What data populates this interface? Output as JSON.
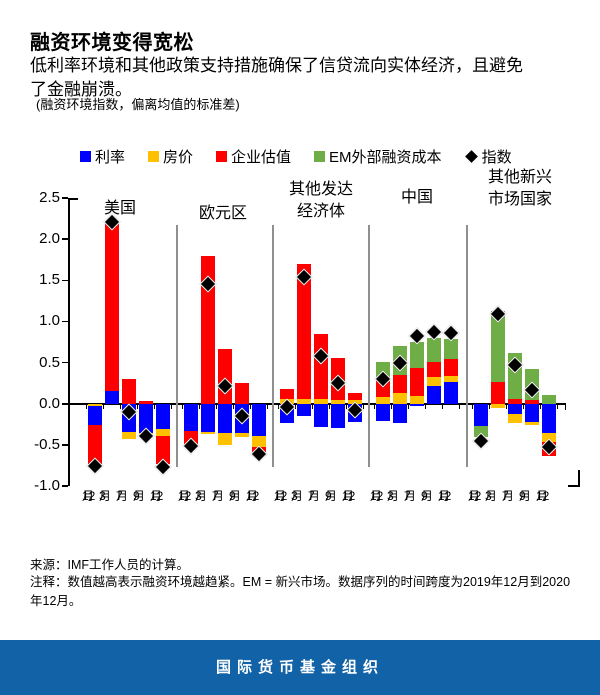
{
  "header": {
    "title": "融资环境变得宽松",
    "subtitle": "低利率环境和其他政策支持措施确保了信贷流向实体经济，且避免了金融崩溃。",
    "unit_note": "(融资环境指数，偏离均值的标准差)"
  },
  "colors": {
    "rate_blue": "#0000FE",
    "house_yellow": "#FFC000",
    "corp_red": "#FE0000",
    "em_green": "#6FAD47",
    "index_black": "#000000",
    "separator_gray": "#8F8F8F",
    "banner_blue": "#1162A6"
  },
  "legend": [
    {
      "label": "利率",
      "marker": "square",
      "color": "#0000FE"
    },
    {
      "label": "房价",
      "marker": "square",
      "color": "#FFC000"
    },
    {
      "label": "企业估值",
      "marker": "square",
      "color": "#FE0000"
    },
    {
      "label": "EM外部融资成本",
      "marker": "square",
      "color": "#6FAD47"
    },
    {
      "label": "指数",
      "marker": "diamond",
      "color": "#000000"
    }
  ],
  "chart_data": {
    "type": "bar",
    "stacked": true,
    "ylim": [
      -1.0,
      2.5
    ],
    "yticks": [
      2.5,
      2.0,
      1.5,
      1.0,
      0.5,
      0.0,
      -0.5,
      -1.0
    ],
    "grid": false,
    "x_tick_labels": [
      "12月",
      "3月",
      "7月",
      "9月",
      "12月"
    ],
    "series_colors": {
      "利率": "#0000FE",
      "房价": "#FFC000",
      "企业估值": "#FE0000",
      "EM外部融资成本": "#6FAD47"
    },
    "index_marker": "指数",
    "groups": [
      {
        "name": "美国",
        "label_lines": [
          "美国"
        ],
        "bars": [
          {
            "segments": [
              {
                "s": "房价",
                "v": -0.03
              },
              {
                "s": "利率",
                "v": -0.23
              },
              {
                "s": "企业估值",
                "v": -0.47
              }
            ],
            "index": -0.76
          },
          {
            "segments": [
              {
                "s": "利率",
                "v": 0.15
              },
              {
                "s": "企业估值",
                "v": 2.07
              }
            ],
            "index": 2.2
          },
          {
            "segments": [
              {
                "s": "企业估值",
                "v": 0.3
              },
              {
                "s": "利率",
                "v": -0.34
              },
              {
                "s": "房价",
                "v": -0.09
              }
            ],
            "index": -0.11
          },
          {
            "segments": [
              {
                "s": "企业估值",
                "v": 0.03
              },
              {
                "s": "利率",
                "v": -0.35
              },
              {
                "s": "房价",
                "v": -0.05
              }
            ],
            "index": -0.4
          },
          {
            "segments": [
              {
                "s": "利率",
                "v": -0.31
              },
              {
                "s": "房价",
                "v": -0.08
              },
              {
                "s": "企业估值",
                "v": -0.34
              }
            ],
            "index": -0.77
          }
        ]
      },
      {
        "name": "欧元区",
        "label_lines": [
          "欧元区"
        ],
        "bars": [
          {
            "segments": [
              {
                "s": "利率",
                "v": -0.33
              },
              {
                "s": "企业估值",
                "v": -0.17
              }
            ],
            "index": -0.52
          },
          {
            "segments": [
              {
                "s": "企业估值",
                "v": 1.8
              },
              {
                "s": "利率",
                "v": -0.34
              },
              {
                "s": "房价",
                "v": -0.03
              }
            ],
            "index": 1.45
          },
          {
            "segments": [
              {
                "s": "企业估值",
                "v": 0.66
              },
              {
                "s": "利率",
                "v": -0.36
              },
              {
                "s": "房价",
                "v": -0.14
              }
            ],
            "index": 0.21
          },
          {
            "segments": [
              {
                "s": "企业估值",
                "v": 0.25
              },
              {
                "s": "利率",
                "v": -0.35
              },
              {
                "s": "房价",
                "v": -0.06
              }
            ],
            "index": -0.16
          },
          {
            "segments": [
              {
                "s": "利率",
                "v": -0.39
              },
              {
                "s": "房价",
                "v": -0.13
              },
              {
                "s": "企业估值",
                "v": -0.12
              }
            ],
            "index": -0.62
          }
        ]
      },
      {
        "name": "其他发达经济体",
        "label_lines": [
          "其他发达",
          "经济体"
        ],
        "bars": [
          {
            "segments": [
              {
                "s": "房价",
                "v": 0.06
              },
              {
                "s": "企业估值",
                "v": 0.12
              },
              {
                "s": "利率",
                "v": -0.23
              }
            ],
            "index": -0.04
          },
          {
            "segments": [
              {
                "s": "房价",
                "v": 0.06
              },
              {
                "s": "企业估值",
                "v": 1.64
              },
              {
                "s": "利率",
                "v": -0.15
              }
            ],
            "index": 1.53
          },
          {
            "segments": [
              {
                "s": "房价",
                "v": 0.06
              },
              {
                "s": "企业估值",
                "v": 0.79
              },
              {
                "s": "利率",
                "v": -0.28
              }
            ],
            "index": 0.58
          },
          {
            "segments": [
              {
                "s": "房价",
                "v": 0.05
              },
              {
                "s": "企业估值",
                "v": 0.51
              },
              {
                "s": "利率",
                "v": -0.3
              }
            ],
            "index": 0.25
          },
          {
            "segments": [
              {
                "s": "房价",
                "v": 0.04
              },
              {
                "s": "企业估值",
                "v": 0.09
              },
              {
                "s": "利率",
                "v": -0.22
              }
            ],
            "index": -0.08
          }
        ]
      },
      {
        "name": "中国",
        "label_lines": [
          "中国"
        ],
        "bars": [
          {
            "segments": [
              {
                "s": "房价",
                "v": 0.08
              },
              {
                "s": "企业估值",
                "v": 0.25
              },
              {
                "s": "EM外部融资成本",
                "v": 0.18
              },
              {
                "s": "利率",
                "v": -0.21
              }
            ],
            "index": 0.3
          },
          {
            "segments": [
              {
                "s": "房价",
                "v": 0.13
              },
              {
                "s": "企业估值",
                "v": 0.22
              },
              {
                "s": "EM外部融资成本",
                "v": 0.35
              },
              {
                "s": "利率",
                "v": -0.23
              }
            ],
            "index": 0.49
          },
          {
            "segments": [
              {
                "s": "房价",
                "v": 0.09
              },
              {
                "s": "企业估值",
                "v": 0.35
              },
              {
                "s": "EM外部融资成本",
                "v": 0.31
              },
              {
                "s": "利率",
                "v": -0.03
              }
            ],
            "index": 0.82
          },
          {
            "segments": [
              {
                "s": "利率",
                "v": 0.22
              },
              {
                "s": "房价",
                "v": 0.1
              },
              {
                "s": "企业估值",
                "v": 0.19
              },
              {
                "s": "EM外部融资成本",
                "v": 0.29
              }
            ],
            "index": 0.86
          },
          {
            "segments": [
              {
                "s": "利率",
                "v": 0.26
              },
              {
                "s": "房价",
                "v": 0.08
              },
              {
                "s": "企业估值",
                "v": 0.2
              },
              {
                "s": "EM外部融资成本",
                "v": 0.25
              }
            ],
            "index": 0.85
          }
        ]
      },
      {
        "name": "其他新兴市场国家",
        "label_lines": [
          "其他新兴",
          "市场国家"
        ],
        "bars": [
          {
            "segments": [
              {
                "s": "利率",
                "v": -0.27
              },
              {
                "s": "EM外部融资成本",
                "v": -0.13
              }
            ],
            "index": -0.46
          },
          {
            "segments": [
              {
                "s": "企业估值",
                "v": 0.26
              },
              {
                "s": "EM外部融资成本",
                "v": 0.87
              },
              {
                "s": "房价",
                "v": -0.05
              }
            ],
            "index": 1.08
          },
          {
            "segments": [
              {
                "s": "企业估值",
                "v": 0.06
              },
              {
                "s": "EM外部融资成本",
                "v": 0.56
              },
              {
                "s": "利率",
                "v": -0.13
              },
              {
                "s": "房价",
                "v": -0.1
              }
            ],
            "index": 0.46
          },
          {
            "segments": [
              {
                "s": "企业估值",
                "v": 0.05
              },
              {
                "s": "EM外部融资成本",
                "v": 0.37
              },
              {
                "s": "利率",
                "v": -0.22
              },
              {
                "s": "房价",
                "v": -0.04
              }
            ],
            "index": 0.16
          },
          {
            "segments": [
              {
                "s": "EM外部融资成本",
                "v": 0.11
              },
              {
                "s": "利率",
                "v": -0.36
              },
              {
                "s": "房价",
                "v": -0.1
              },
              {
                "s": "企业估值",
                "v": -0.18
              }
            ],
            "index": -0.53
          }
        ]
      }
    ]
  },
  "footer": {
    "source": "来源：IMF工作人员的计算。",
    "note": "注释：数值越高表示融资环境越趋紧。EM = 新兴市场。数据序列的时间跨度为2019年12月到2020年12月。",
    "banner": "国际货币基金组织"
  }
}
